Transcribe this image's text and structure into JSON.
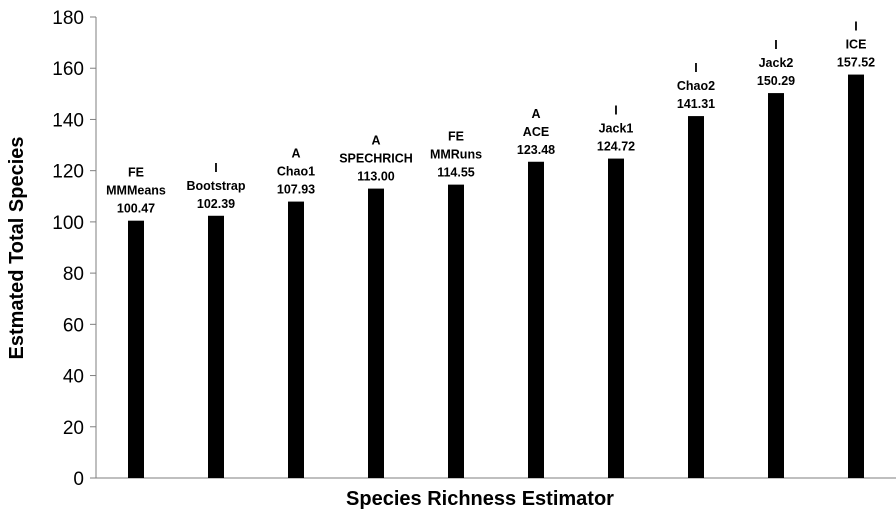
{
  "chart_data": {
    "type": "bar",
    "title": "",
    "xlabel": "Species Richness Estimator",
    "ylabel": "Estmated Total Species",
    "ylim": [
      0,
      180
    ],
    "yticks": [
      0,
      20,
      40,
      60,
      80,
      100,
      120,
      140,
      160,
      180
    ],
    "grid": false,
    "bar_color": "#000000",
    "categories": [
      {
        "group": "FE",
        "name": "MMMeans",
        "value_label": "100.47"
      },
      {
        "group": "I",
        "name": "Bootstrap",
        "value_label": "102.39"
      },
      {
        "group": "A",
        "name": "Chao1",
        "value_label": "107.93"
      },
      {
        "group": "A",
        "name": "SPECHRICH",
        "value_label": "113.00"
      },
      {
        "group": "FE",
        "name": "MMRuns",
        "value_label": "114.55"
      },
      {
        "group": "A",
        "name": "ACE",
        "value_label": "123.48"
      },
      {
        "group": "I",
        "name": "Jack1",
        "value_label": "124.72"
      },
      {
        "group": "I",
        "name": "Chao2",
        "value_label": "141.31"
      },
      {
        "group": "I",
        "name": "Jack2",
        "value_label": "150.29"
      },
      {
        "group": "I",
        "name": "ICE",
        "value_label": "157.52"
      }
    ],
    "values": [
      100.47,
      102.39,
      107.93,
      113.0,
      114.55,
      123.48,
      124.72,
      141.31,
      150.29,
      157.52
    ]
  }
}
